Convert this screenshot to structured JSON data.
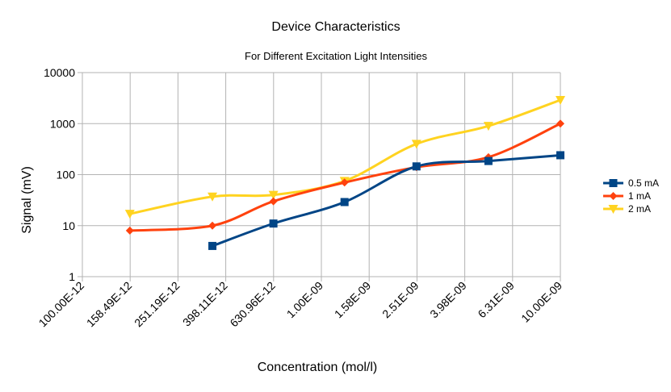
{
  "chart_data": {
    "type": "line",
    "title": "Device Characteristics",
    "subtitle": "For Different Excitation Light Intensities",
    "xlabel": "Concentration (mol/l)",
    "ylabel": "Signal (mV)",
    "x_scale": "log",
    "y_scale": "log",
    "xlim": [
      1e-10,
      1e-08
    ],
    "ylim": [
      1,
      10000
    ],
    "x_tick_values": [
      1e-10,
      1.5849e-10,
      2.5119e-10,
      3.9811e-10,
      6.3096e-10,
      1e-09,
      1.5849e-09,
      2.5119e-09,
      3.9811e-09,
      6.3096e-09,
      1e-08
    ],
    "x_tick_labels": [
      "100.00E-12",
      "158.49E-12",
      "251.19E-12",
      "398.11E-12",
      "630.96E-12",
      "1.00E-09",
      "1.58E-09",
      "2.51E-09",
      "3.98E-09",
      "6.31E-09",
      "10.00E-09"
    ],
    "y_tick_values": [
      1,
      10,
      100,
      1000,
      10000
    ],
    "y_tick_labels": [
      "1",
      "10",
      "100",
      "1000",
      "10000"
    ],
    "grid": "vertical and horizontal major",
    "legend_position": "right",
    "series": [
      {
        "name": "0.5 mA",
        "color": "#004586",
        "marker": "square",
        "points": [
          {
            "x": 3.5e-10,
            "y": 4
          },
          {
            "x": 6.3e-10,
            "y": 11
          },
          {
            "x": 1.25e-09,
            "y": 29
          },
          {
            "x": 2.5e-09,
            "y": 145
          },
          {
            "x": 5e-09,
            "y": 185
          },
          {
            "x": 1e-08,
            "y": 240
          }
        ]
      },
      {
        "name": "1 mA",
        "color": "#ff420e",
        "marker": "diamond",
        "points": [
          {
            "x": 1.58e-10,
            "y": 8
          },
          {
            "x": 3.5e-10,
            "y": 10
          },
          {
            "x": 6.3e-10,
            "y": 30
          },
          {
            "x": 1.25e-09,
            "y": 70
          },
          {
            "x": 2.5e-09,
            "y": 140
          },
          {
            "x": 5e-09,
            "y": 220
          },
          {
            "x": 1e-08,
            "y": 1000
          }
        ]
      },
      {
        "name": "2 mA",
        "color": "#ffd320",
        "marker": "triangle-down",
        "points": [
          {
            "x": 1.58e-10,
            "y": 17
          },
          {
            "x": 3.5e-10,
            "y": 37
          },
          {
            "x": 6.3e-10,
            "y": 40
          },
          {
            "x": 1.25e-09,
            "y": 75
          },
          {
            "x": 2.5e-09,
            "y": 400
          },
          {
            "x": 5e-09,
            "y": 900
          },
          {
            "x": 1e-08,
            "y": 2900
          }
        ]
      }
    ]
  }
}
